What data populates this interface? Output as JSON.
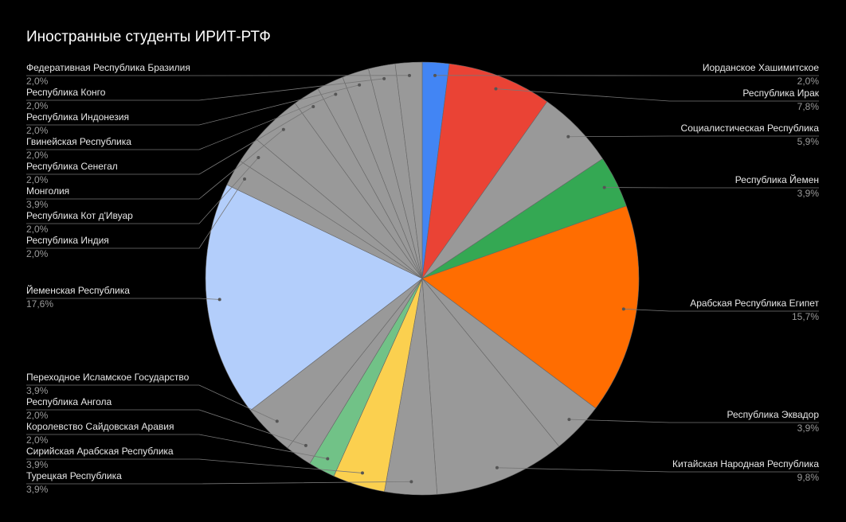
{
  "chart_data": {
    "type": "pie",
    "title": "Иностранные студенты ИРИТ-РТФ",
    "categories": [
      "Иорданское Хашимитское",
      "Республика Ирак",
      "Социалистическая Республика",
      "Республика Йемен",
      "Арабская Республика Египет",
      "Республика Эквадор",
      "Китайская Народная Республика",
      "Турецкая Республика",
      "Сирийская Арабская Республика",
      "Королевство Сайдовская Аравия",
      "Республика Ангола",
      "Переходное Исламское Государство",
      "Йеменская Республика",
      "Республика Индия",
      "Республика Кот д'Ивуар",
      "Монголия",
      "Республика Сенегал",
      "Гвинейская Республика",
      "Республика Индонезия",
      "Республика Конго",
      "Федеративная Республика Бразилия"
    ],
    "values": [
      2.0,
      7.8,
      5.9,
      3.9,
      15.7,
      3.9,
      9.8,
      3.9,
      3.9,
      2.0,
      2.0,
      3.9,
      17.6,
      2.0,
      2.0,
      3.9,
      2.0,
      2.0,
      2.0,
      2.0,
      2.0
    ],
    "value_labels": [
      "2,0%",
      "7,8%",
      "5,9%",
      "3,9%",
      "15,7%",
      "3,9%",
      "9,8%",
      "3,9%",
      "3,9%",
      "2,0%",
      "2,0%",
      "3,9%",
      "17,6%",
      "2,0%",
      "2,0%",
      "3,9%",
      "2,0%",
      "2,0%",
      "2,0%",
      "2,0%",
      "2,0%"
    ],
    "colors": [
      "#4285f4",
      "#ea4335",
      "#999999",
      "#34a853",
      "#ff6d01",
      "#999999",
      "#999999",
      "#999999",
      "#fbd04f",
      "#71c287",
      "#999999",
      "#999999",
      "#b3cefb",
      "#999999",
      "#999999",
      "#999999",
      "#999999",
      "#999999",
      "#999999",
      "#999999",
      "#999999"
    ]
  }
}
